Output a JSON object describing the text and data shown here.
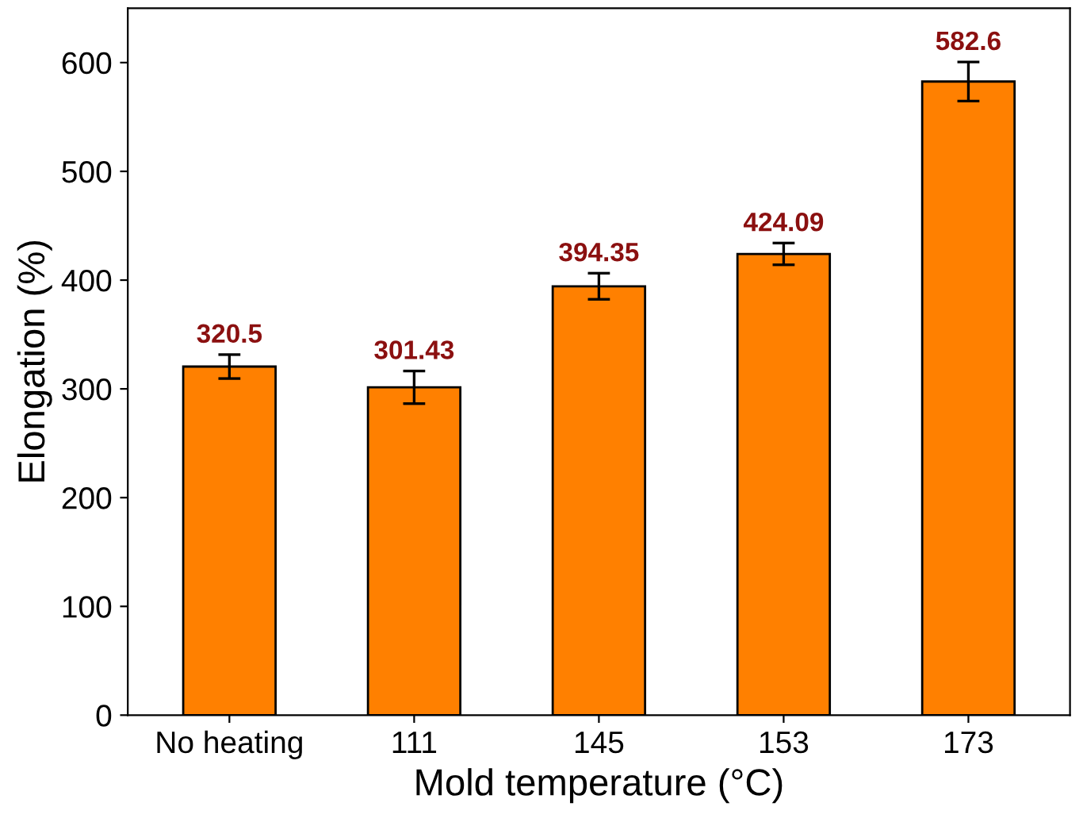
{
  "chart_data": {
    "type": "bar",
    "xlabel": "Mold temperature (°C)",
    "ylabel": "Elongation (%)",
    "categories": [
      "No heating",
      "111",
      "145",
      "153",
      "173"
    ],
    "values": [
      320.5,
      301.43,
      394.35,
      424.09,
      582.6
    ],
    "errors": [
      11,
      15,
      12,
      10,
      18
    ],
    "color": "#ff8000",
    "data_labels": true,
    "ylim": [
      0,
      650
    ],
    "yticks": [
      0,
      100,
      200,
      300,
      400,
      500,
      600
    ],
    "grid": false,
    "legend": false
  }
}
